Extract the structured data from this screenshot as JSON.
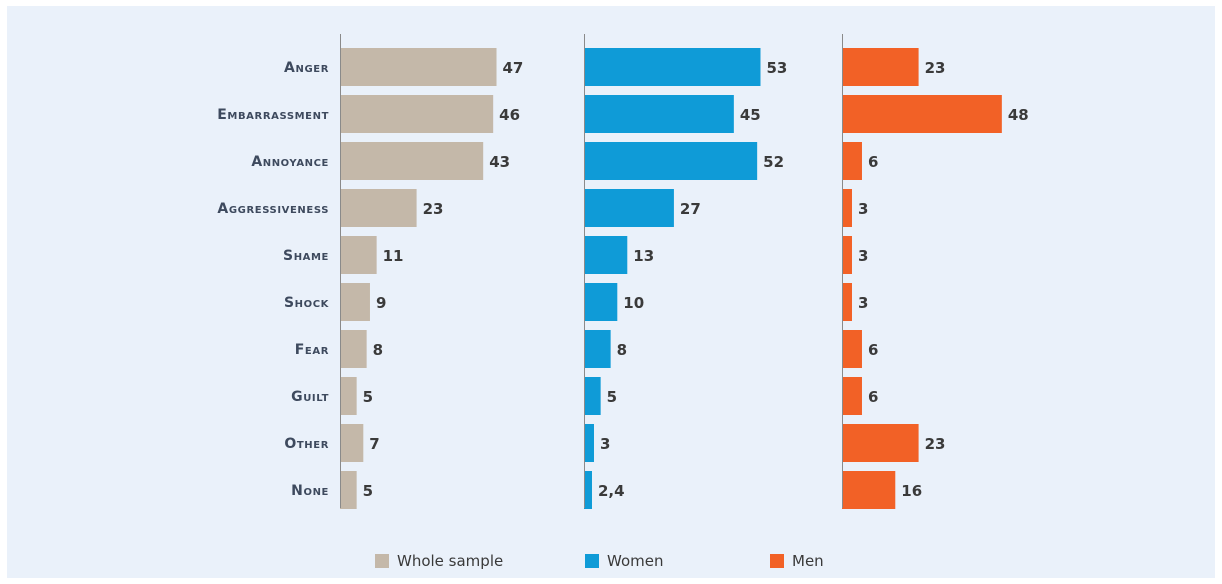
{
  "chart_data": {
    "type": "bar",
    "orientation": "horizontal",
    "layout": "small-multiples",
    "categories": [
      "Anger",
      "Embarrassment",
      "Annoyance",
      "Aggressiveness",
      "Shame",
      "Shock",
      "Fear",
      "Guilt",
      "Other",
      "None"
    ],
    "series": [
      {
        "name": "Whole sample",
        "color": "#c4b8a9",
        "values": [
          47,
          46,
          43,
          23,
          11,
          9,
          8,
          5,
          7,
          5
        ],
        "value_labels": [
          "47",
          "46",
          "43",
          "23",
          "11",
          "9",
          "8",
          "5",
          "7",
          "5"
        ]
      },
      {
        "name": "Women",
        "color": "#0f9bd7",
        "values": [
          53,
          45,
          52,
          27,
          13,
          10,
          8,
          5,
          3,
          2.4
        ],
        "value_labels": [
          "53",
          "45",
          "52",
          "27",
          "13",
          "10",
          "8",
          "5",
          "3",
          "2,4"
        ]
      },
      {
        "name": "Men",
        "color": "#f26126",
        "values": [
          23,
          48,
          6,
          3,
          3,
          3,
          6,
          6,
          23,
          16
        ],
        "value_labels": [
          "23",
          "48",
          "6",
          "3",
          "3",
          "3",
          "6",
          "6",
          "23",
          "16"
        ]
      }
    ],
    "xlim": [
      0,
      100
    ],
    "grid": false,
    "legend_position": "bottom",
    "title": "",
    "xlabel": "",
    "ylabel": ""
  }
}
